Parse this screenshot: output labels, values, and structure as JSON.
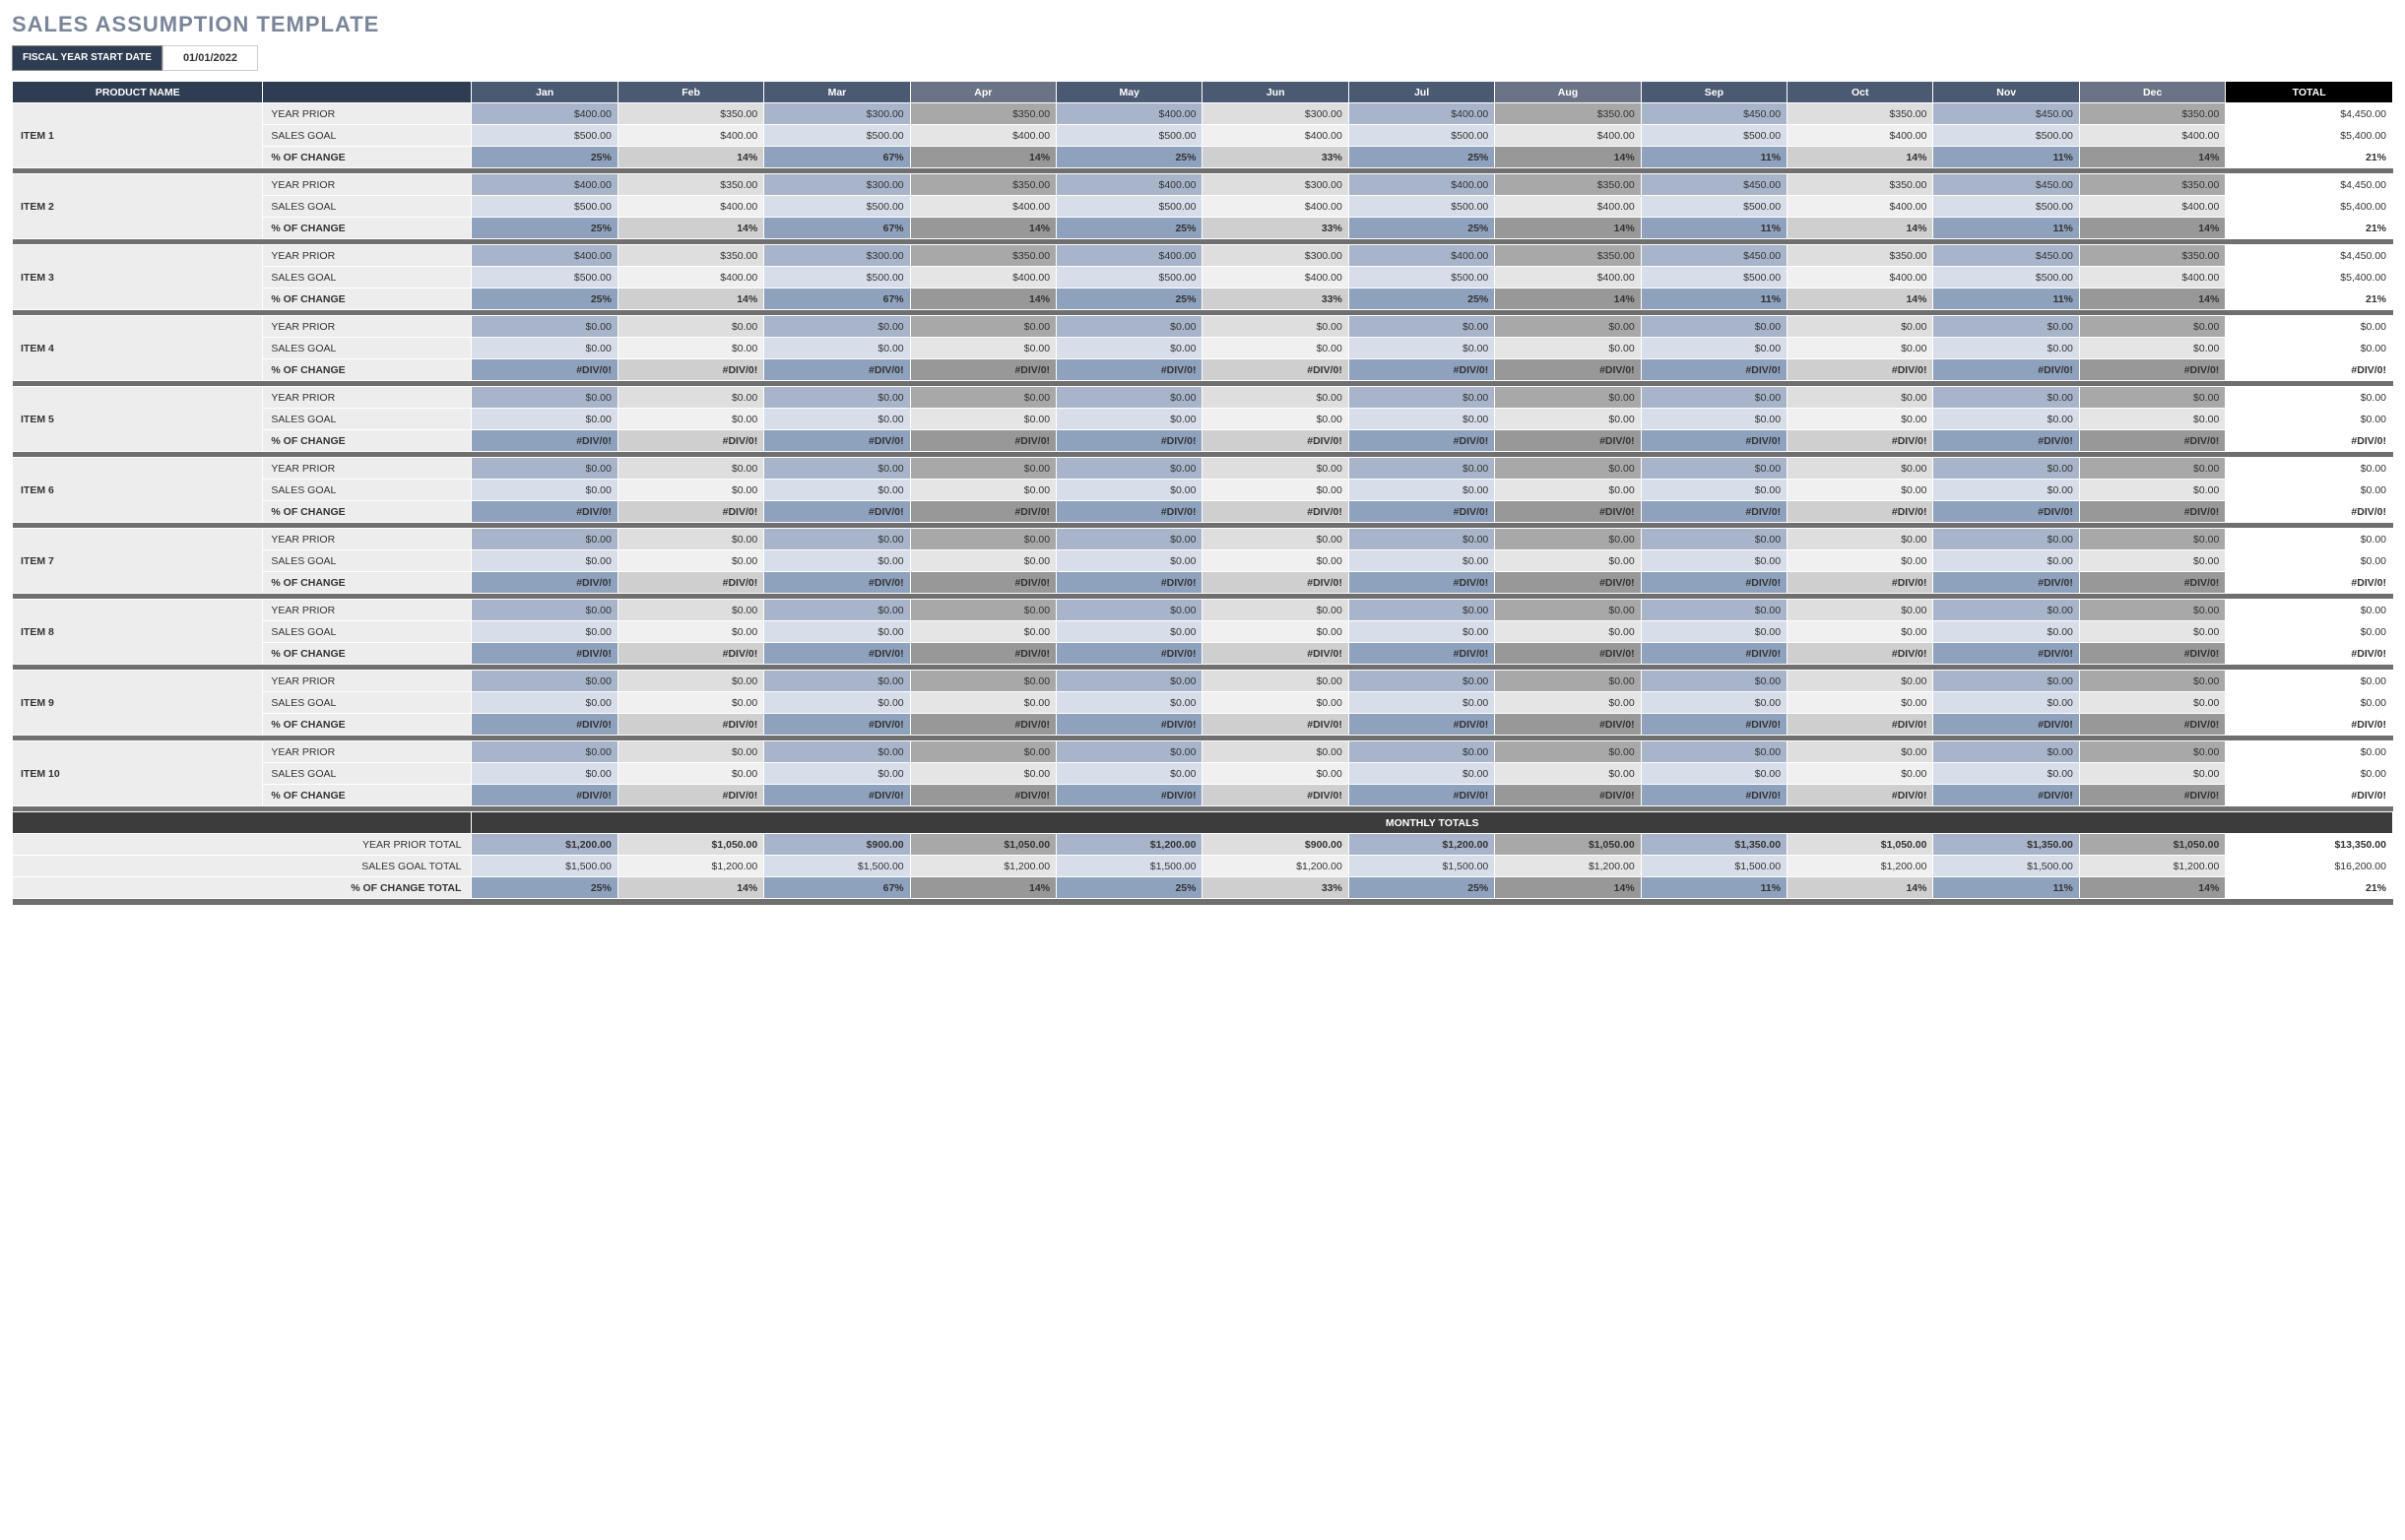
{
  "title": "SALES ASSUMPTION TEMPLATE",
  "fiscal_label": "FISCAL YEAR START DATE",
  "fiscal_value": "01/01/2022",
  "columns": {
    "product": "PRODUCT NAME",
    "months": [
      "Jan",
      "Feb",
      "Mar",
      "Apr",
      "May",
      "Jun",
      "Jul",
      "Aug",
      "Sep",
      "Oct",
      "Nov",
      "Dec"
    ],
    "total": "TOTAL"
  },
  "month_header_colors": [
    "#4b5a73",
    "#4b5a73",
    "#4b5a73",
    "#6b7486",
    "#4b5a73",
    "#4b5a73",
    "#4b5a73",
    "#6b7486",
    "#4b5a73",
    "#4b5a73",
    "#4b5a73",
    "#6b7486"
  ],
  "month_cell_colors": {
    "prior": [
      "#a7b4c9",
      "#dedede",
      "#a7b4c9",
      "#a8a8a8",
      "#a7b4c9",
      "#dedede",
      "#a7b4c9",
      "#a8a8a8",
      "#a7b4c9",
      "#dedede",
      "#a7b4c9",
      "#a8a8a8"
    ],
    "goal": [
      "#d7dee9",
      "#f0f0f0",
      "#d7dee9",
      "#e5e5e5",
      "#d7dee9",
      "#f0f0f0",
      "#d7dee9",
      "#e5e5e5",
      "#d7dee9",
      "#f0f0f0",
      "#d7dee9",
      "#e5e5e5"
    ],
    "change": [
      "#8ea1bd",
      "#cfcfcf",
      "#8ea1bd",
      "#989898",
      "#8ea1bd",
      "#cfcfcf",
      "#8ea1bd",
      "#989898",
      "#8ea1bd",
      "#cfcfcf",
      "#8ea1bd",
      "#989898"
    ]
  },
  "row_labels": {
    "prior": "YEAR PRIOR",
    "goal": "SALES GOAL",
    "change": "% OF CHANGE"
  },
  "items": [
    {
      "name": "ITEM 1",
      "prior": [
        "$400.00",
        "$350.00",
        "$300.00",
        "$350.00",
        "$400.00",
        "$300.00",
        "$400.00",
        "$350.00",
        "$450.00",
        "$350.00",
        "$450.00",
        "$350.00"
      ],
      "prior_total": "$4,450.00",
      "goal": [
        "$500.00",
        "$400.00",
        "$500.00",
        "$400.00",
        "$500.00",
        "$400.00",
        "$500.00",
        "$400.00",
        "$500.00",
        "$400.00",
        "$500.00",
        "$400.00"
      ],
      "goal_total": "$5,400.00",
      "change": [
        "25%",
        "14%",
        "67%",
        "14%",
        "25%",
        "33%",
        "25%",
        "14%",
        "11%",
        "14%",
        "11%",
        "14%"
      ],
      "change_total": "21%"
    },
    {
      "name": "ITEM 2",
      "prior": [
        "$400.00",
        "$350.00",
        "$300.00",
        "$350.00",
        "$400.00",
        "$300.00",
        "$400.00",
        "$350.00",
        "$450.00",
        "$350.00",
        "$450.00",
        "$350.00"
      ],
      "prior_total": "$4,450.00",
      "goal": [
        "$500.00",
        "$400.00",
        "$500.00",
        "$400.00",
        "$500.00",
        "$400.00",
        "$500.00",
        "$400.00",
        "$500.00",
        "$400.00",
        "$500.00",
        "$400.00"
      ],
      "goal_total": "$5,400.00",
      "change": [
        "25%",
        "14%",
        "67%",
        "14%",
        "25%",
        "33%",
        "25%",
        "14%",
        "11%",
        "14%",
        "11%",
        "14%"
      ],
      "change_total": "21%"
    },
    {
      "name": "ITEM 3",
      "prior": [
        "$400.00",
        "$350.00",
        "$300.00",
        "$350.00",
        "$400.00",
        "$300.00",
        "$400.00",
        "$350.00",
        "$450.00",
        "$350.00",
        "$450.00",
        "$350.00"
      ],
      "prior_total": "$4,450.00",
      "goal": [
        "$500.00",
        "$400.00",
        "$500.00",
        "$400.00",
        "$500.00",
        "$400.00",
        "$500.00",
        "$400.00",
        "$500.00",
        "$400.00",
        "$500.00",
        "$400.00"
      ],
      "goal_total": "$5,400.00",
      "change": [
        "25%",
        "14%",
        "67%",
        "14%",
        "25%",
        "33%",
        "25%",
        "14%",
        "11%",
        "14%",
        "11%",
        "14%"
      ],
      "change_total": "21%"
    },
    {
      "name": "ITEM 4",
      "prior": [
        "$0.00",
        "$0.00",
        "$0.00",
        "$0.00",
        "$0.00",
        "$0.00",
        "$0.00",
        "$0.00",
        "$0.00",
        "$0.00",
        "$0.00",
        "$0.00"
      ],
      "prior_total": "$0.00",
      "goal": [
        "$0.00",
        "$0.00",
        "$0.00",
        "$0.00",
        "$0.00",
        "$0.00",
        "$0.00",
        "$0.00",
        "$0.00",
        "$0.00",
        "$0.00",
        "$0.00"
      ],
      "goal_total": "$0.00",
      "change": [
        "#DIV/0!",
        "#DIV/0!",
        "#DIV/0!",
        "#DIV/0!",
        "#DIV/0!",
        "#DIV/0!",
        "#DIV/0!",
        "#DIV/0!",
        "#DIV/0!",
        "#DIV/0!",
        "#DIV/0!",
        "#DIV/0!"
      ],
      "change_total": "#DIV/0!"
    },
    {
      "name": "ITEM 5",
      "prior": [
        "$0.00",
        "$0.00",
        "$0.00",
        "$0.00",
        "$0.00",
        "$0.00",
        "$0.00",
        "$0.00",
        "$0.00",
        "$0.00",
        "$0.00",
        "$0.00"
      ],
      "prior_total": "$0.00",
      "goal": [
        "$0.00",
        "$0.00",
        "$0.00",
        "$0.00",
        "$0.00",
        "$0.00",
        "$0.00",
        "$0.00",
        "$0.00",
        "$0.00",
        "$0.00",
        "$0.00"
      ],
      "goal_total": "$0.00",
      "change": [
        "#DIV/0!",
        "#DIV/0!",
        "#DIV/0!",
        "#DIV/0!",
        "#DIV/0!",
        "#DIV/0!",
        "#DIV/0!",
        "#DIV/0!",
        "#DIV/0!",
        "#DIV/0!",
        "#DIV/0!",
        "#DIV/0!"
      ],
      "change_total": "#DIV/0!"
    },
    {
      "name": "ITEM 6",
      "prior": [
        "$0.00",
        "$0.00",
        "$0.00",
        "$0.00",
        "$0.00",
        "$0.00",
        "$0.00",
        "$0.00",
        "$0.00",
        "$0.00",
        "$0.00",
        "$0.00"
      ],
      "prior_total": "$0.00",
      "goal": [
        "$0.00",
        "$0.00",
        "$0.00",
        "$0.00",
        "$0.00",
        "$0.00",
        "$0.00",
        "$0.00",
        "$0.00",
        "$0.00",
        "$0.00",
        "$0.00"
      ],
      "goal_total": "$0.00",
      "change": [
        "#DIV/0!",
        "#DIV/0!",
        "#DIV/0!",
        "#DIV/0!",
        "#DIV/0!",
        "#DIV/0!",
        "#DIV/0!",
        "#DIV/0!",
        "#DIV/0!",
        "#DIV/0!",
        "#DIV/0!",
        "#DIV/0!"
      ],
      "change_total": "#DIV/0!"
    },
    {
      "name": "ITEM 7",
      "prior": [
        "$0.00",
        "$0.00",
        "$0.00",
        "$0.00",
        "$0.00",
        "$0.00",
        "$0.00",
        "$0.00",
        "$0.00",
        "$0.00",
        "$0.00",
        "$0.00"
      ],
      "prior_total": "$0.00",
      "goal": [
        "$0.00",
        "$0.00",
        "$0.00",
        "$0.00",
        "$0.00",
        "$0.00",
        "$0.00",
        "$0.00",
        "$0.00",
        "$0.00",
        "$0.00",
        "$0.00"
      ],
      "goal_total": "$0.00",
      "change": [
        "#DIV/0!",
        "#DIV/0!",
        "#DIV/0!",
        "#DIV/0!",
        "#DIV/0!",
        "#DIV/0!",
        "#DIV/0!",
        "#DIV/0!",
        "#DIV/0!",
        "#DIV/0!",
        "#DIV/0!",
        "#DIV/0!"
      ],
      "change_total": "#DIV/0!"
    },
    {
      "name": "ITEM 8",
      "prior": [
        "$0.00",
        "$0.00",
        "$0.00",
        "$0.00",
        "$0.00",
        "$0.00",
        "$0.00",
        "$0.00",
        "$0.00",
        "$0.00",
        "$0.00",
        "$0.00"
      ],
      "prior_total": "$0.00",
      "goal": [
        "$0.00",
        "$0.00",
        "$0.00",
        "$0.00",
        "$0.00",
        "$0.00",
        "$0.00",
        "$0.00",
        "$0.00",
        "$0.00",
        "$0.00",
        "$0.00"
      ],
      "goal_total": "$0.00",
      "change": [
        "#DIV/0!",
        "#DIV/0!",
        "#DIV/0!",
        "#DIV/0!",
        "#DIV/0!",
        "#DIV/0!",
        "#DIV/0!",
        "#DIV/0!",
        "#DIV/0!",
        "#DIV/0!",
        "#DIV/0!",
        "#DIV/0!"
      ],
      "change_total": "#DIV/0!"
    },
    {
      "name": "ITEM 9",
      "prior": [
        "$0.00",
        "$0.00",
        "$0.00",
        "$0.00",
        "$0.00",
        "$0.00",
        "$0.00",
        "$0.00",
        "$0.00",
        "$0.00",
        "$0.00",
        "$0.00"
      ],
      "prior_total": "$0.00",
      "goal": [
        "$0.00",
        "$0.00",
        "$0.00",
        "$0.00",
        "$0.00",
        "$0.00",
        "$0.00",
        "$0.00",
        "$0.00",
        "$0.00",
        "$0.00",
        "$0.00"
      ],
      "goal_total": "$0.00",
      "change": [
        "#DIV/0!",
        "#DIV/0!",
        "#DIV/0!",
        "#DIV/0!",
        "#DIV/0!",
        "#DIV/0!",
        "#DIV/0!",
        "#DIV/0!",
        "#DIV/0!",
        "#DIV/0!",
        "#DIV/0!",
        "#DIV/0!"
      ],
      "change_total": "#DIV/0!"
    },
    {
      "name": "ITEM 10",
      "prior": [
        "$0.00",
        "$0.00",
        "$0.00",
        "$0.00",
        "$0.00",
        "$0.00",
        "$0.00",
        "$0.00",
        "$0.00",
        "$0.00",
        "$0.00",
        "$0.00"
      ],
      "prior_total": "$0.00",
      "goal": [
        "$0.00",
        "$0.00",
        "$0.00",
        "$0.00",
        "$0.00",
        "$0.00",
        "$0.00",
        "$0.00",
        "$0.00",
        "$0.00",
        "$0.00",
        "$0.00"
      ],
      "goal_total": "$0.00",
      "change": [
        "#DIV/0!",
        "#DIV/0!",
        "#DIV/0!",
        "#DIV/0!",
        "#DIV/0!",
        "#DIV/0!",
        "#DIV/0!",
        "#DIV/0!",
        "#DIV/0!",
        "#DIV/0!",
        "#DIV/0!",
        "#DIV/0!"
      ],
      "change_total": "#DIV/0!"
    }
  ],
  "monthly_totals": {
    "header": "MONTHLY TOTALS",
    "prior_label": "YEAR PRIOR TOTAL",
    "prior": [
      "$1,200.00",
      "$1,050.00",
      "$900.00",
      "$1,050.00",
      "$1,200.00",
      "$900.00",
      "$1,200.00",
      "$1,050.00",
      "$1,350.00",
      "$1,050.00",
      "$1,350.00",
      "$1,050.00"
    ],
    "prior_total": "$13,350.00",
    "goal_label": "SALES GOAL TOTAL",
    "goal": [
      "$1,500.00",
      "$1,200.00",
      "$1,500.00",
      "$1,200.00",
      "$1,500.00",
      "$1,200.00",
      "$1,500.00",
      "$1,200.00",
      "$1,500.00",
      "$1,200.00",
      "$1,500.00",
      "$1,200.00"
    ],
    "goal_total": "$16,200.00",
    "change_label": "% OF CHANGE TOTAL",
    "change": [
      "25%",
      "14%",
      "67%",
      "14%",
      "25%",
      "33%",
      "25%",
      "14%",
      "11%",
      "14%",
      "11%",
      "14%"
    ],
    "change_total": "21%"
  }
}
